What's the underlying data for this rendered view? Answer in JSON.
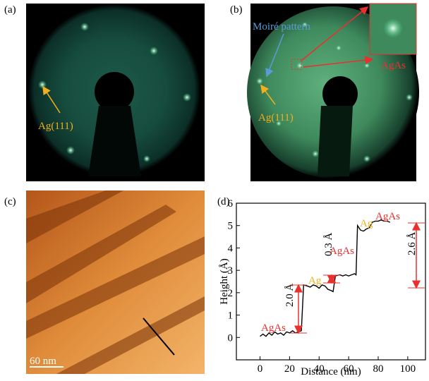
{
  "panels": {
    "a": {
      "label": "(a)",
      "annotation": "Ag(111)"
    },
    "b": {
      "label": "(b)",
      "annotations": [
        "Moiré pattern",
        "Ag(111)",
        "AgAs"
      ]
    },
    "c": {
      "label": "(c)",
      "scale_bar": "60 nm"
    },
    "d": {
      "label": "(d)"
    }
  },
  "chart_data": {
    "type": "line",
    "x_label": "Distance (nm)",
    "y_label": "Height (Å)",
    "x": [
      0,
      2,
      4,
      6,
      8,
      10,
      12,
      14,
      16,
      18,
      20,
      22,
      24,
      26,
      28,
      29.5,
      32,
      34,
      36,
      38,
      40,
      42,
      44,
      46,
      48,
      49.5,
      51,
      54,
      56,
      58,
      60,
      62,
      64,
      65,
      66,
      68,
      70,
      72,
      74,
      76,
      78,
      80,
      82,
      84,
      86,
      88
    ],
    "series": [
      {
        "color": "#000000",
        "values": [
          0.05,
          0.15,
          0.05,
          0.2,
          0.1,
          0.25,
          0.15,
          0.2,
          0.1,
          0.25,
          0.2,
          0.3,
          0.2,
          0.25,
          0.3,
          2.35,
          2.3,
          2.25,
          2.35,
          2.3,
          2.2,
          2.35,
          2.3,
          2.15,
          2.1,
          2.05,
          2.75,
          2.8,
          2.75,
          2.8,
          2.75,
          2.8,
          2.85,
          2.8,
          5.0,
          4.8,
          4.75,
          4.85,
          4.9,
          5.15,
          5.2,
          5.2,
          5.25,
          5.2,
          5.2,
          5.15
        ]
      }
    ],
    "xlim": [
      -16,
      112
    ],
    "ylim": [
      -1,
      6
    ],
    "xticks": [
      0,
      20,
      40,
      60,
      80,
      100
    ],
    "yticks": [
      0,
      1,
      2,
      3,
      4,
      5,
      6
    ],
    "annotations": [
      {
        "text": "AgAs",
        "color": "#e8312f"
      },
      {
        "text": "Ag",
        "color": "#f2b01e"
      },
      {
        "text": "AgAs",
        "color": "#e8312f"
      },
      {
        "text": "Ag",
        "color": "#f2b01e"
      },
      {
        "text": "AgAs",
        "color": "#e8312f"
      },
      {
        "text": "2.0 Å",
        "color": "#000000"
      },
      {
        "text": "0.3 Å",
        "color": "#000000"
      },
      {
        "text": "2.6 Å",
        "color": "#000000"
      }
    ]
  }
}
